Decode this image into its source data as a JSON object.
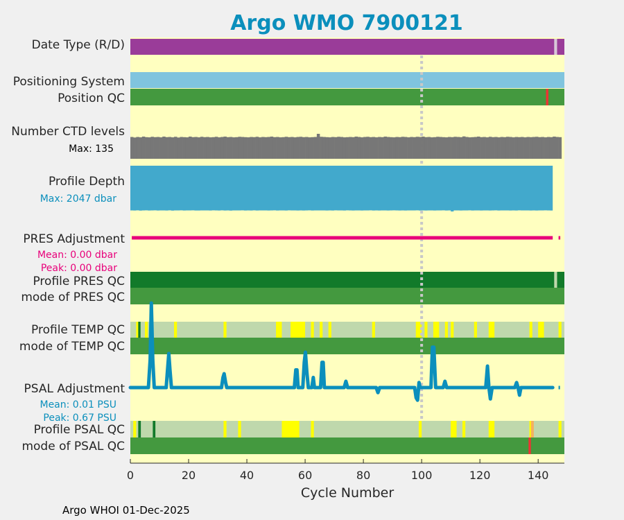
{
  "chart_data": {
    "type": "timeline",
    "title": "Argo WMO 7900121",
    "xlabel": "Cycle Number",
    "xlim": [
      0,
      149
    ],
    "xticks": [
      0,
      20,
      40,
      60,
      80,
      100,
      120,
      140
    ],
    "xtick_labels": [
      "0",
      "20",
      "40",
      "60",
      "80",
      "100",
      "120",
      "140"
    ],
    "marker_cycle": 100,
    "footer": "Argo WHOI 01-Dec-2025",
    "colors": {
      "panel_bg": "#ffffc0",
      "delayed": "#9a3c99",
      "realtime_gap": "#d8c7d8",
      "gps": "#80c4de",
      "qc_good": "#44993f",
      "qc_good_dark": "#127a2a",
      "qc_bad": "#ee3333",
      "qc_light": "#bfd8ac",
      "qc_yellow": "#ffff00",
      "ctd_gray": "#777777",
      "depth_blue": "#42a9cc",
      "pres_line": "#e8007a",
      "psal_line": "#0b8fbc",
      "marker": "#c8c8c8"
    },
    "labels": {
      "data_type": "Date Type (R/D)",
      "positioning_system": "Positioning System",
      "position_qc": "Position QC",
      "number_ctd_levels": "Number CTD levels",
      "max_ctd_levels": "Max: 135",
      "profile_depth": "Profile Depth",
      "max_depth": "Max: 2047 dbar",
      "pres_adjustment": "PRES Adjustment",
      "pres_mean": "Mean: 0.00 dbar",
      "pres_peak": "Peak: 0.00 dbar",
      "profile_pres_qc": "Profile PRES QC",
      "mode_pres_qc": "mode of PRES QC",
      "profile_temp_qc": "Profile TEMP QC",
      "mode_temp_qc": "mode of TEMP QC",
      "psal_adjustment": "PSAL Adjustment",
      "psal_mean": "Mean: 0.01 PSU",
      "psal_peak": "Peak: 0.67 PSU",
      "profile_psal_qc": "Profile PSAL QC",
      "mode_psal_qc": "mode of PSAL QC"
    },
    "data_mode_realtime_cycles": [
      146
    ],
    "position_qc_bad_cycles": [
      143
    ],
    "pres_adjustment_gap_cycles": [
      146
    ],
    "profile_pres_qc_light_cycles": [
      146
    ],
    "temp_qc_dark_cycles": [
      3
    ],
    "temp_qc_yellow_ranges": [
      [
        2,
        3
      ],
      [
        5,
        6
      ],
      [
        15,
        16
      ],
      [
        32,
        33
      ],
      [
        50,
        52
      ],
      [
        55,
        60
      ],
      [
        62,
        63
      ],
      [
        65,
        66
      ],
      [
        68,
        69
      ],
      [
        83,
        84
      ],
      [
        98,
        100
      ],
      [
        101,
        102
      ],
      [
        104,
        106
      ],
      [
        108,
        109
      ],
      [
        110,
        111
      ],
      [
        118,
        119
      ],
      [
        123,
        125
      ],
      [
        137,
        138
      ],
      [
        140,
        142
      ],
      [
        147,
        148
      ]
    ],
    "psal_qc_dark_cycles": [
      3,
      8
    ],
    "psal_qc_yellow_ranges": [
      [
        1,
        2
      ],
      [
        32,
        33
      ],
      [
        37,
        38
      ],
      [
        52,
        58
      ],
      [
        62,
        63
      ],
      [
        99,
        100
      ],
      [
        110,
        112
      ],
      [
        114,
        115
      ],
      [
        123,
        125
      ],
      [
        137,
        138
      ],
      [
        147,
        148
      ]
    ],
    "psal_qc_orange_cycles": [
      138
    ],
    "mode_psal_qc_bad_cycles": [
      137
    ],
    "ctd_levels_max": 135,
    "ctd_levels": [
      118,
      115,
      118,
      116,
      120,
      117,
      116,
      119,
      117,
      118,
      116,
      120,
      117,
      118,
      116,
      119,
      115,
      118,
      117,
      116,
      120,
      117,
      118,
      116,
      119,
      117,
      118,
      116,
      117,
      119,
      116,
      118,
      120,
      117,
      118,
      116,
      117,
      119,
      118,
      117,
      116,
      118,
      117,
      119,
      116,
      118,
      117,
      118,
      120,
      117,
      118,
      116,
      117,
      119,
      117,
      118,
      116,
      118,
      119,
      117,
      118,
      116,
      117,
      118,
      135,
      119,
      118,
      117,
      116,
      118,
      117,
      119,
      118,
      116,
      117,
      118,
      117,
      120,
      118,
      116,
      118,
      119,
      117,
      118,
      116,
      118,
      117,
      120,
      118,
      117,
      116,
      118,
      117,
      119,
      118,
      116,
      118,
      117,
      119,
      118,
      120,
      117,
      118,
      116,
      117,
      119,
      118,
      117,
      116,
      118,
      117,
      119,
      118,
      117,
      121,
      118,
      116,
      117,
      118,
      120,
      117,
      118,
      116,
      119,
      117,
      118,
      116,
      118,
      117,
      119,
      118,
      116,
      118,
      117,
      118,
      116,
      118,
      117,
      118,
      119,
      117,
      118,
      116,
      118,
      117,
      120,
      118,
      117
    ],
    "profile_depth_max": 2047,
    "profile_depth": [
      2000,
      2005,
      1995,
      2010,
      2000,
      1998,
      2004,
      2002,
      1996,
      2006,
      2001,
      1999,
      2003,
      1997,
      2008,
      2000,
      2002,
      1998,
      2005,
      2000,
      2001,
      1996,
      2004,
      2003,
      1999,
      2002,
      2000,
      2006,
      1998,
      2001,
      2004,
      1997,
      2003,
      2000,
      2007,
      1999,
      2002,
      2001,
      1998,
      2005,
      2000,
      2003,
      1997,
      2004,
      2001,
      2000,
      1999,
      2006,
      2002,
      1998,
      2003,
      2000,
      2001,
      2004,
      1997,
      2002,
      2000,
      2005,
      1999,
      2003,
      2001,
      1998,
      2004,
      2000,
      2002,
      2001,
      1999,
      2006,
      2000,
      2003,
      1998,
      2002,
      2001,
      2004,
      1997,
      2000,
      2003,
      2001,
      1999,
      2005,
      2002,
      2000,
      1998,
      2004,
      2001,
      2003,
      1999,
      2000,
      2006,
      2002,
      1998,
      2001,
      2003,
      2000,
      2004,
      1999,
      2002,
      2001,
      1998,
      2005,
      2000,
      2003,
      2001,
      1999,
      2004,
      2002,
      2000,
      1998,
      2003,
      2001,
      2047,
      2002,
      1999,
      2004,
      2000,
      2001,
      1998,
      2003,
      2002,
      2000,
      2005,
      1999,
      2001,
      2003,
      2000,
      1998,
      2004,
      2002,
      2001,
      1999,
      2003,
      2000,
      2005,
      1998,
      2002,
      2001,
      2000,
      2004,
      1999,
      2003,
      2001,
      2000,
      1998,
      2002,
      2004
    ],
    "pres_adjustment_mean": 0.0,
    "pres_adjustment_peak": 0.0,
    "psal_adjustment_mean": 0.01,
    "psal_adjustment_peak": 0.67,
    "psal_adjustment_ylim": [
      -0.2,
      0.7
    ],
    "psal_adjustment_points": [
      [
        0,
        0
      ],
      [
        6.2,
        0
      ],
      [
        6.8,
        0.22
      ],
      [
        7.2,
        0.67
      ],
      [
        7.7,
        0.22
      ],
      [
        8.2,
        0
      ],
      [
        12.3,
        0
      ],
      [
        12.8,
        0.15
      ],
      [
        13.2,
        0.27
      ],
      [
        13.6,
        0.14
      ],
      [
        14.1,
        0
      ],
      [
        31.3,
        0
      ],
      [
        31.8,
        0.08
      ],
      [
        32.2,
        0.11
      ],
      [
        32.7,
        0.04
      ],
      [
        33.1,
        0
      ],
      [
        56.3,
        0
      ],
      [
        56.8,
        0.14
      ],
      [
        57.2,
        0.14
      ],
      [
        57.6,
        0
      ],
      [
        59.2,
        0
      ],
      [
        59.7,
        0.2
      ],
      [
        60.1,
        0.28
      ],
      [
        60.6,
        0.12
      ],
      [
        61.1,
        0
      ],
      [
        62.3,
        0
      ],
      [
        62.8,
        0.08
      ],
      [
        63.2,
        0
      ],
      [
        65.3,
        0
      ],
      [
        65.8,
        0.2
      ],
      [
        66.2,
        0.2
      ],
      [
        66.6,
        0
      ],
      [
        73.4,
        0
      ],
      [
        74,
        0.05
      ],
      [
        74.6,
        0
      ],
      [
        84.4,
        0
      ],
      [
        85,
        -0.04
      ],
      [
        85.6,
        0
      ],
      [
        97.6,
        0
      ],
      [
        98.1,
        -0.08
      ],
      [
        98.6,
        -0.1
      ],
      [
        99.1,
        0.04
      ],
      [
        99.5,
        0
      ],
      [
        103.2,
        0
      ],
      [
        103.7,
        0.32
      ],
      [
        104.2,
        0.32
      ],
      [
        104.8,
        0
      ],
      [
        107.4,
        0
      ],
      [
        108,
        0.05
      ],
      [
        108.6,
        0
      ],
      [
        122,
        0
      ],
      [
        122.6,
        0.17
      ],
      [
        123.1,
        0
      ],
      [
        123.6,
        -0.09
      ],
      [
        124.2,
        0
      ],
      [
        132,
        0
      ],
      [
        132.6,
        0.04
      ],
      [
        133.1,
        0
      ],
      [
        133.6,
        -0.06
      ],
      [
        134.1,
        0
      ],
      [
        145,
        0
      ]
    ],
    "psal_gap_cycles": [
      146
    ]
  }
}
